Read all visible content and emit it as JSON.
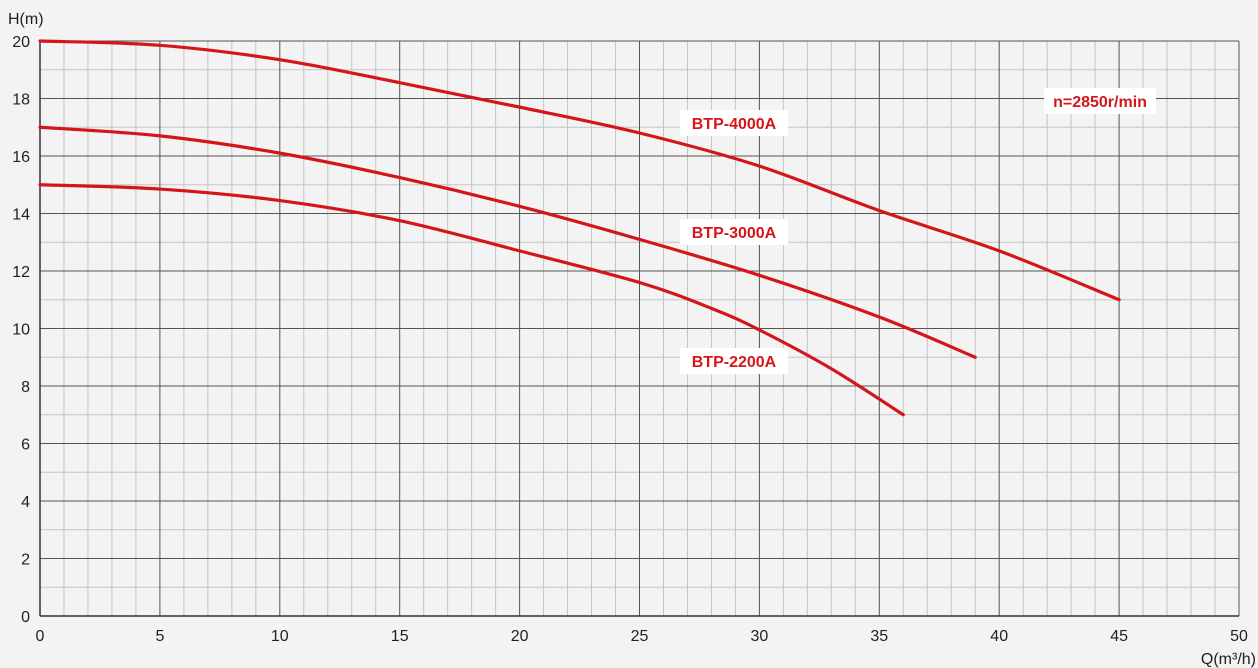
{
  "chart_data": {
    "type": "line",
    "xlabel": "Q(m³/h)",
    "ylabel": "H(m)",
    "xlim": [
      0,
      50
    ],
    "ylim": [
      0,
      20
    ],
    "x_ticks": [
      0,
      5,
      10,
      15,
      20,
      25,
      30,
      35,
      40,
      45,
      50
    ],
    "y_ticks": [
      0,
      2,
      4,
      6,
      8,
      10,
      12,
      14,
      16,
      18,
      20
    ],
    "grid": true,
    "line_color": "#d4161b",
    "annotation": "n=2850r/min",
    "series": [
      {
        "name": "BTP-4000A",
        "points": [
          [
            0,
            20
          ],
          [
            5,
            19.85
          ],
          [
            10,
            19.35
          ],
          [
            15,
            18.55
          ],
          [
            20,
            17.7
          ],
          [
            25,
            16.8
          ],
          [
            30,
            15.65
          ],
          [
            35,
            14.1
          ],
          [
            40,
            12.7
          ],
          [
            45,
            11.0
          ]
        ]
      },
      {
        "name": "BTP-3000A",
        "points": [
          [
            0,
            17.0
          ],
          [
            5,
            16.7
          ],
          [
            10,
            16.1
          ],
          [
            15,
            15.25
          ],
          [
            20,
            14.25
          ],
          [
            25,
            13.1
          ],
          [
            30,
            11.85
          ],
          [
            35,
            10.4
          ],
          [
            39,
            9.0
          ]
        ]
      },
      {
        "name": "BTP-2200A",
        "points": [
          [
            0,
            15.0
          ],
          [
            5,
            14.85
          ],
          [
            10,
            14.45
          ],
          [
            15,
            13.75
          ],
          [
            20,
            12.7
          ],
          [
            25,
            11.6
          ],
          [
            28,
            10.7
          ],
          [
            30,
            9.95
          ],
          [
            33,
            8.6
          ],
          [
            36,
            7.0
          ]
        ]
      }
    ]
  }
}
